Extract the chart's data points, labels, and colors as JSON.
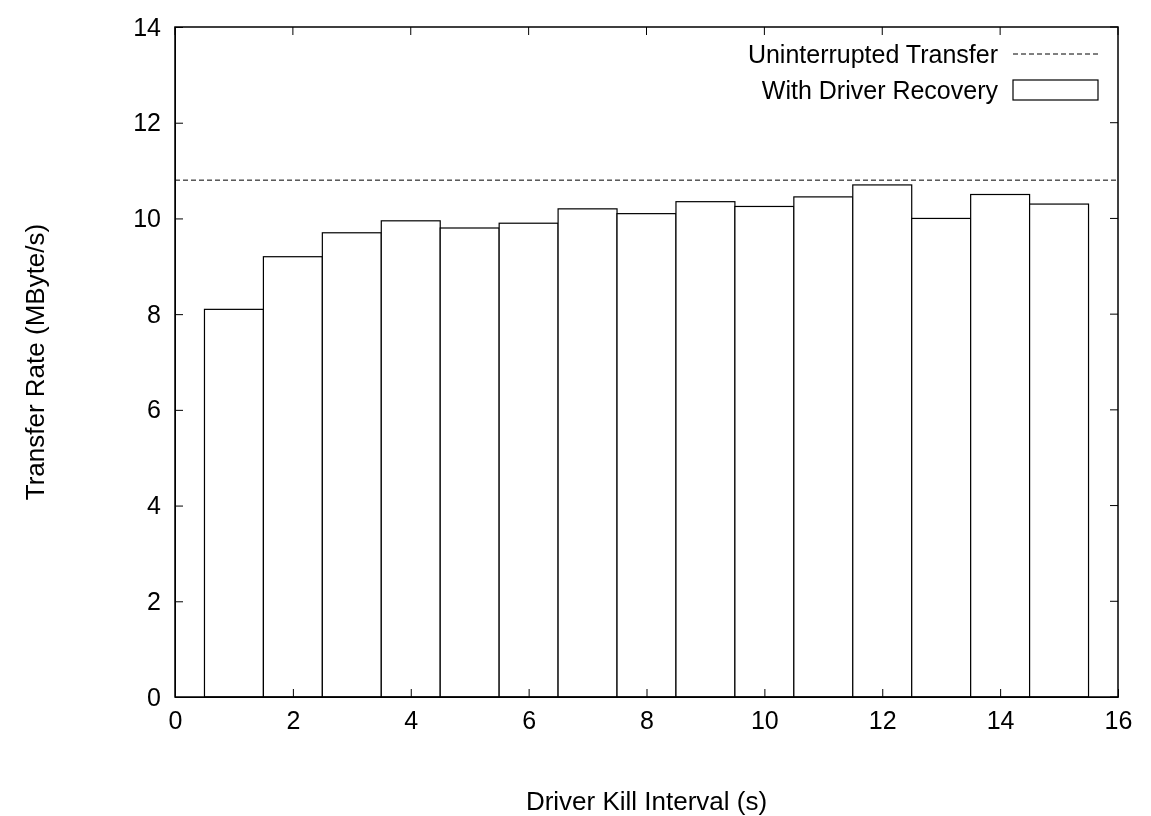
{
  "chart_data": {
    "type": "bar",
    "xlabel": "Driver Kill Interval (s)",
    "ylabel": "Transfer Rate (MByte/s)",
    "x": [
      1,
      2,
      3,
      4,
      5,
      6,
      7,
      8,
      9,
      10,
      11,
      12,
      13,
      14,
      15
    ],
    "series": [
      {
        "name": "With Driver Recovery",
        "color": "#ffffff",
        "values": [
          8.1,
          9.2,
          9.7,
          9.95,
          9.8,
          9.9,
          10.2,
          10.1,
          10.35,
          10.25,
          10.45,
          10.7,
          10.0,
          10.5,
          10.3
        ]
      }
    ],
    "xlim": [
      0,
      16
    ],
    "xticks": [
      0,
      2,
      4,
      6,
      8,
      10,
      12,
      14,
      16
    ],
    "ylim": [
      0,
      14
    ],
    "yticks": [
      0,
      2,
      4,
      6,
      8,
      10,
      12,
      14
    ],
    "ref_lines": [
      {
        "axis": "y",
        "value": 10.8,
        "label": "Uninterrupted Transfer",
        "color": "#000000",
        "line_style": "dashed"
      }
    ],
    "legend": "top right",
    "grid": false
  }
}
